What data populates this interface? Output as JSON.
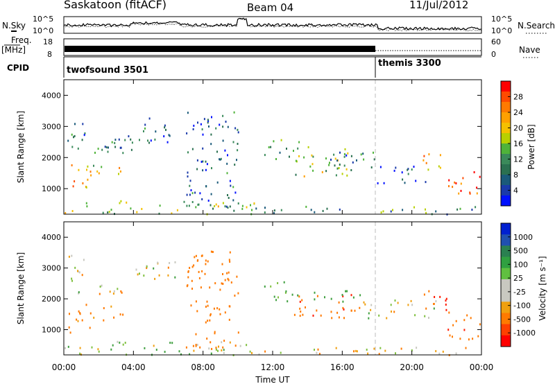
{
  "header": {
    "station": "Saskatoon (fitACF)",
    "beam": "Beam 04",
    "date": "11/Jul/2012"
  },
  "status_labels": {
    "nsky": "N.Sky",
    "nsearch": "N.Search",
    "freq_line1": "Freq.",
    "freq_line2": "[MHz]",
    "nave": "Nave",
    "cpid": "CPID"
  },
  "status_ticks": {
    "noise_left": [
      "10^5",
      "10^0"
    ],
    "noise_right": [
      "10^5",
      "10^0"
    ],
    "freq_left": [
      "18",
      "8"
    ],
    "nave_right": [
      "60",
      "0"
    ]
  },
  "programs": [
    {
      "name": "twofsound 3501",
      "start_hour": 0
    },
    {
      "name": "themis 3300",
      "start_hour": 18
    }
  ],
  "power_panel": {
    "ylabel": "Slant Range [km]",
    "colorbar_label": "Power [dB]",
    "colorbar_ticks": [
      "28",
      "24",
      "20",
      "16",
      "12",
      "8",
      "4"
    ],
    "colorbar_colors": [
      "#ff0000",
      "#ff4a00",
      "#ff7a00",
      "#ffa000",
      "#f5c000",
      "#b8d000",
      "#4fb33a",
      "#3a8a5a",
      "#2a7050",
      "#1a5a7a",
      "#1a3aaa",
      "#0010ff"
    ]
  },
  "velocity_panel": {
    "ylabel": "Slant Range [km]",
    "colorbar_label": "Velocity [m s⁻¹]",
    "colorbar_ticks": [
      "1000",
      "500",
      "100",
      "25",
      "-25",
      "-100",
      "-500",
      "-1000"
    ],
    "colorbar_colors": [
      "#0020d0",
      "#2050b0",
      "#2a8050",
      "#30a040",
      "#60c040",
      "#c8c8c0",
      "#c8c8c0",
      "#f0a010",
      "#ff7a00",
      "#ff4000",
      "#ff0000"
    ]
  },
  "xaxis": {
    "label": "Time UT",
    "ticks": [
      "00:00",
      "04:00",
      "08:00",
      "12:00",
      "16:00",
      "20:00",
      "00:00"
    ]
  },
  "chart_data": {
    "type": "heatmap",
    "title": "Saskatoon (fitACF) Beam 04 11/Jul/2012",
    "x_label": "Time UT",
    "x_range_hours": [
      0,
      24
    ],
    "y_label": "Slant Range [km]",
    "y_range_km": [
      180,
      4500
    ],
    "y_ticks": [
      1000,
      2000,
      3000,
      4000
    ],
    "panels": [
      {
        "name": "Power [dB]",
        "colorbar_range": [
          0,
          30
        ],
        "scatter_regions": [
          {
            "t": [
              0.2,
              1.5
            ],
            "r": [
              900,
              1900
            ],
            "value": 22
          },
          {
            "t": [
              0.2,
              1.2
            ],
            "r": [
              2200,
              3500
            ],
            "value": 8
          },
          {
            "t": [
              0.5,
              3.5
            ],
            "r": [
              2100,
              2500
            ],
            "value": 10
          },
          {
            "t": [
              1.5,
              3.5
            ],
            "r": [
              1300,
              1800
            ],
            "value": 18
          },
          {
            "t": [
              2.5,
              4.5
            ],
            "r": [
              2200,
              2800
            ],
            "value": 6
          },
          {
            "t": [
              4.0,
              6.5
            ],
            "r": [
              2500,
              3300
            ],
            "value": 6
          },
          {
            "t": [
              0.0,
              11.0
            ],
            "r": [
              200,
              650
            ],
            "value": 14
          },
          {
            "t": [
              7.0,
              10.0
            ],
            "r": [
              400,
              3600
            ],
            "value": 6
          },
          {
            "t": [
              11.5,
              13.5
            ],
            "r": [
              1900,
              2600
            ],
            "value": 10
          },
          {
            "t": [
              13.0,
              16.5
            ],
            "r": [
              1400,
              2400
            ],
            "value": 14
          },
          {
            "t": [
              15.0,
              18.0
            ],
            "r": [
              1600,
              2300
            ],
            "value": 8
          },
          {
            "t": [
              18.0,
              21.0
            ],
            "r": [
              1200,
              1800
            ],
            "value": 6
          },
          {
            "t": [
              20.5,
              22.0
            ],
            "r": [
              1600,
              2200
            ],
            "value": 22
          },
          {
            "t": [
              22.0,
              24.0
            ],
            "r": [
              700,
              1600
            ],
            "value": 26
          },
          {
            "t": [
              10.5,
              24.0
            ],
            "r": [
              200,
              450
            ],
            "value": 10
          }
        ]
      },
      {
        "name": "Velocity [m s⁻¹]",
        "colorbar_range": [
          -1000,
          1000
        ],
        "scatter_regions": [
          {
            "t": [
              0.2,
              1.5
            ],
            "r": [
              900,
              1900
            ],
            "value": -200
          },
          {
            "t": [
              0.2,
              1.2
            ],
            "r": [
              2200,
              3500
            ],
            "value": 0
          },
          {
            "t": [
              0.5,
              3.5
            ],
            "r": [
              2100,
              2500
            ],
            "value": 0
          },
          {
            "t": [
              1.5,
              3.5
            ],
            "r": [
              1300,
              1800
            ],
            "value": -150
          },
          {
            "t": [
              4.0,
              6.5
            ],
            "r": [
              2500,
              3300
            ],
            "value": 0
          },
          {
            "t": [
              0.0,
              11.0
            ],
            "r": [
              200,
              650
            ],
            "value": 60
          },
          {
            "t": [
              7.0,
              10.0
            ],
            "r": [
              400,
              3600
            ],
            "value": -300
          },
          {
            "t": [
              11.5,
              13.5
            ],
            "r": [
              1900,
              2600
            ],
            "value": 150
          },
          {
            "t": [
              13.0,
              17.0
            ],
            "r": [
              1400,
              2200
            ],
            "value": -400
          },
          {
            "t": [
              14.0,
              17.0
            ],
            "r": [
              1900,
              2300
            ],
            "value": 300
          },
          {
            "t": [
              17.0,
              21.5
            ],
            "r": [
              1400,
              2000
            ],
            "value": 0
          },
          {
            "t": [
              20.5,
              22.0
            ],
            "r": [
              1600,
              2300
            ],
            "value": -450
          },
          {
            "t": [
              22.0,
              24.0
            ],
            "r": [
              700,
              1600
            ],
            "value": -400
          },
          {
            "t": [
              10.5,
              24.0
            ],
            "r": [
              200,
              450
            ],
            "value": -50
          }
        ]
      }
    ]
  }
}
